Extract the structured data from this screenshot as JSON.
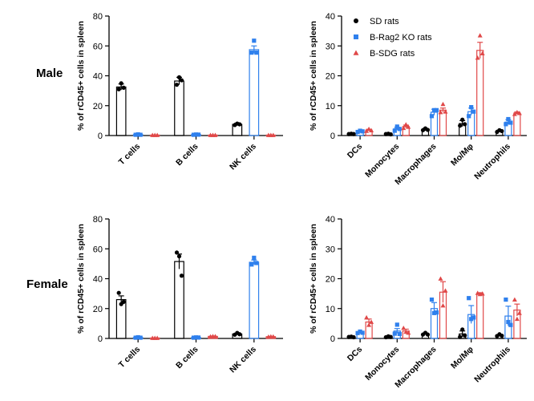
{
  "row_labels": {
    "male": "Male",
    "female": "Female"
  },
  "colors": {
    "SD rats": "#000000",
    "B-Rag2 KO rats": "#2f80ed",
    "B-SDG rats": "#e04848"
  },
  "chart_data": [
    {
      "panel": "male-left",
      "type": "bar",
      "ylabel": "% of rCD45+ cells in spleen",
      "ylim": [
        0,
        80
      ],
      "yticks": [
        0,
        20,
        40,
        60,
        80
      ],
      "categories": [
        "T cells",
        "B cells",
        "NK cells"
      ],
      "series": [
        {
          "name": "SD rats",
          "marker": "circle",
          "values": [
            32.5,
            36.5,
            7.5
          ],
          "err": [
            2,
            2.5,
            0.8
          ],
          "points": [
            [
              31,
              35,
              32
            ],
            [
              34,
              39,
              37
            ],
            [
              7,
              8,
              7.5
            ]
          ]
        },
        {
          "name": "B-Rag2 KO rats",
          "marker": "square",
          "values": [
            0.6,
            0.6,
            57.5
          ],
          "err": [
            0.3,
            0.3,
            2.5
          ],
          "points": [
            [
              0.5,
              0.8,
              0.5
            ],
            [
              0.5,
              0.7,
              0.6
            ],
            [
              55.5,
              63.5,
              55.5
            ]
          ]
        },
        {
          "name": "B-SDG rats",
          "marker": "triangle",
          "values": [
            0.3,
            0.3,
            0.3
          ],
          "err": [
            0.1,
            0.1,
            0.1
          ],
          "points": [
            [
              0.3,
              0.3,
              0.3
            ],
            [
              0.3,
              0.3,
              0.3
            ],
            [
              0.3,
              0.3,
              0.3
            ]
          ]
        }
      ]
    },
    {
      "panel": "male-right",
      "type": "bar",
      "ylabel": "% of rCD45+ cells in spleen",
      "ylim": [
        0,
        40
      ],
      "yticks": [
        0,
        10,
        20,
        30,
        40
      ],
      "categories": [
        "DCs",
        "Monocytes",
        "Macrophages",
        "Mo/Mφ",
        "Neutrophils"
      ],
      "legend": {
        "placement": "top-left",
        "entries": [
          "SD rats",
          "B-Rag2 KO rats",
          "B-SDG rats"
        ]
      },
      "series": [
        {
          "name": "SD rats",
          "marker": "circle",
          "values": [
            0.5,
            0.5,
            2,
            4,
            1.5
          ],
          "err": [
            0.2,
            0.2,
            0.4,
            1,
            0.3
          ],
          "points": [
            [
              0.5,
              0.6,
              0.5
            ],
            [
              0.5,
              0.6,
              0.4
            ],
            [
              1.8,
              2.4,
              1.9
            ],
            [
              3.3,
              5.3,
              3.8
            ],
            [
              1.2,
              1.8,
              1.5
            ]
          ]
        },
        {
          "name": "B-Rag2 KO rats",
          "marker": "square",
          "values": [
            1.4,
            2.3,
            7.8,
            8,
            4.5
          ],
          "err": [
            0.3,
            0.5,
            1,
            1.2,
            0.8
          ],
          "points": [
            [
              1.2,
              1.6,
              1.4
            ],
            [
              1.6,
              3,
              2.2
            ],
            [
              6.5,
              8.5,
              8.5
            ],
            [
              6.5,
              9.5,
              8
            ],
            [
              3.8,
              5.5,
              4.3
            ]
          ]
        },
        {
          "name": "B-SDG rats",
          "marker": "triangle",
          "values": [
            1.8,
            3,
            8.5,
            28.5,
            7.5
          ],
          "err": [
            0.3,
            0.5,
            0.7,
            2.7,
            0.4
          ],
          "points": [
            [
              1.5,
              2.2,
              1.7
            ],
            [
              2.5,
              3.7,
              2.9
            ],
            [
              7.8,
              10.5,
              8
            ],
            [
              26,
              33.5,
              27.5
            ],
            [
              7.2,
              7.8,
              7.5
            ]
          ]
        }
      ]
    },
    {
      "panel": "female-left",
      "type": "bar",
      "ylabel": "% of rCD45+ cells in spleen",
      "ylim": [
        0,
        80
      ],
      "yticks": [
        0,
        20,
        40,
        60,
        80
      ],
      "categories": [
        "T cells",
        "B cells",
        "NK cells"
      ],
      "series": [
        {
          "name": "SD rats",
          "marker": "circle",
          "values": [
            26,
            51.5,
            3
          ],
          "err": [
            2.5,
            5,
            0.5
          ],
          "points": [
            [
              30.5,
              23,
              24.5
            ],
            [
              57.5,
              55,
              42
            ],
            [
              2.5,
              3.7,
              2.8
            ]
          ]
        },
        {
          "name": "B-Rag2 KO rats",
          "marker": "square",
          "values": [
            0.6,
            0.6,
            51
          ],
          "err": [
            0.2,
            0.2,
            1.5
          ],
          "points": [
            [
              0.5,
              0.8,
              0.5
            ],
            [
              0.5,
              0.7,
              0.6
            ],
            [
              49.5,
              54,
              50.5
            ]
          ]
        },
        {
          "name": "B-SDG rats",
          "marker": "triangle",
          "values": [
            0.3,
            1.4,
            1.2
          ],
          "err": [
            0.1,
            0.2,
            0.2
          ],
          "points": [
            [
              0.3,
              0.3,
              0.3
            ],
            [
              1.3,
              1.5,
              1.4
            ],
            [
              1.1,
              1.3,
              1.2
            ]
          ]
        }
      ]
    },
    {
      "panel": "female-right",
      "type": "bar",
      "ylabel": "% of rCD45+ cells in spleen",
      "ylim": [
        0,
        40
      ],
      "yticks": [
        0,
        10,
        20,
        30,
        40
      ],
      "categories": [
        "DCs",
        "Monocytes",
        "Macrophages",
        "Mo/Mφ",
        "Neutrophils"
      ],
      "series": [
        {
          "name": "SD rats",
          "marker": "circle",
          "values": [
            0.5,
            0.5,
            1.5,
            1.5,
            1
          ],
          "err": [
            0.2,
            0.2,
            0.3,
            1,
            0.3
          ],
          "points": [
            [
              0.5,
              0.6,
              0.4
            ],
            [
              0.4,
              0.7,
              0.5
            ],
            [
              1.3,
              1.9,
              1.3
            ],
            [
              0.5,
              3,
              1
            ],
            [
              0.8,
              1.4,
              0.9
            ]
          ]
        },
        {
          "name": "B-Rag2 KO rats",
          "marker": "square",
          "values": [
            2,
            2.5,
            10,
            8,
            7.5
          ],
          "err": [
            0.3,
            0.8,
            2,
            3,
            3.3
          ],
          "points": [
            [
              1.8,
              2.3,
              1.9
            ],
            [
              1.6,
              4.6,
              1.5
            ],
            [
              13,
              8.5,
              8.7
            ],
            [
              13.5,
              6.5,
              7
            ],
            [
              13,
              5.5,
              4.5
            ]
          ]
        },
        {
          "name": "B-SDG rats",
          "marker": "triangle",
          "values": [
            5.5,
            2.5,
            15.5,
            15,
            9.5
          ],
          "err": [
            1,
            0.6,
            3.5,
            0.3,
            2
          ],
          "points": [
            [
              7,
              4.5,
              5.5
            ],
            [
              3.5,
              2.2,
              1.9
            ],
            [
              20,
              11,
              16
            ],
            [
              15.2,
              14.8,
              15
            ],
            [
              13,
              6.5,
              8.5
            ]
          ]
        }
      ]
    }
  ]
}
